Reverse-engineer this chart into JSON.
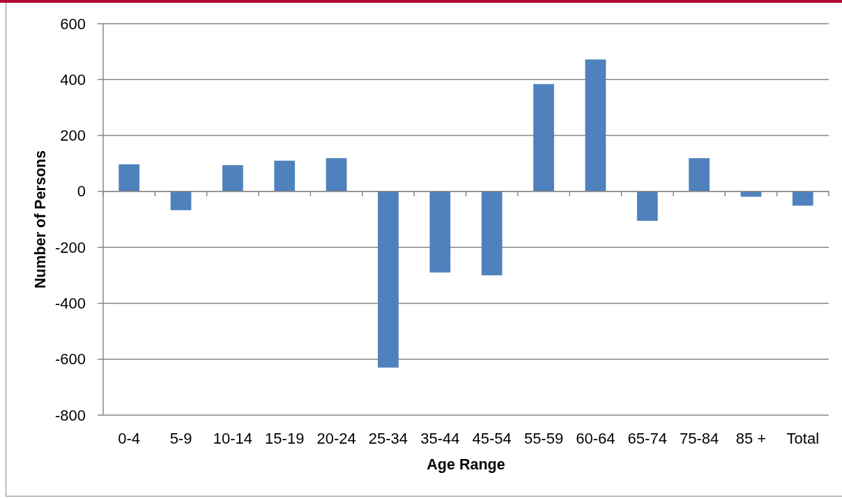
{
  "chart_data": {
    "type": "bar",
    "xlabel": "Age Range",
    "ylabel": "Number of Persons",
    "categories": [
      "0-4",
      "5-9",
      "10-14",
      "15-19",
      "20-24",
      "25-34",
      "35-44",
      "45-54",
      "55-59",
      "60-64",
      "65-74",
      "75-84",
      "85 +",
      "Total"
    ],
    "values": [
      97,
      -67,
      94,
      110,
      119,
      -630,
      -290,
      -300,
      384,
      472,
      -105,
      119,
      -19,
      -51
    ],
    "color": "#4f81bd",
    "ylim": [
      -800,
      600
    ],
    "yticks": [
      -800,
      -600,
      -400,
      -200,
      0,
      200,
      400,
      600
    ],
    "grid": "y"
  }
}
